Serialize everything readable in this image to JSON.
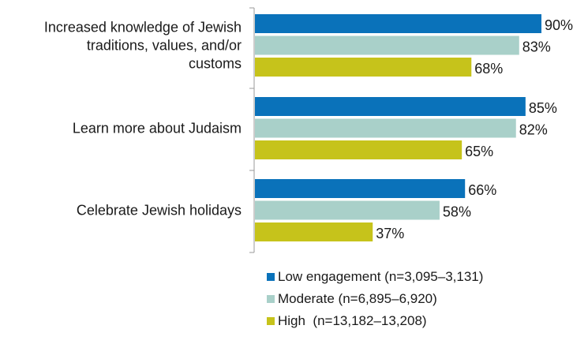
{
  "chart_data": {
    "type": "bar",
    "orientation": "horizontal",
    "categories": [
      [
        "Increased knowledge of Jewish",
        "traditions, values, and/or",
        "customs"
      ],
      [
        "Learn more about Judaism"
      ],
      [
        "Celebrate Jewish holidays"
      ]
    ],
    "series": [
      {
        "name": "Low engagement (n=3,095–3,131)",
        "color": "#0a72ba",
        "values": [
          90,
          85,
          66
        ]
      },
      {
        "name": "Moderate (n=6,895–6,920)",
        "color": "#a9d0c9",
        "values": [
          83,
          82,
          58
        ]
      },
      {
        "name": "High  (n=13,182–13,208)",
        "color": "#c6c31b",
        "values": [
          68,
          65,
          37
        ]
      }
    ],
    "value_suffix": "%",
    "xlim": [
      0,
      100
    ],
    "grid": false,
    "legend_position": "bottom"
  }
}
